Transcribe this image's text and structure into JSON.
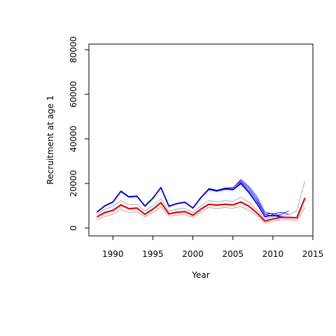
{
  "chart_data": {
    "type": "line",
    "xlabel": "Year",
    "ylabel": "Recruitment at age 1",
    "xlim": [
      1987,
      2015
    ],
    "ylim": [
      -3500,
      82500
    ],
    "x_ticks": [
      1990,
      1995,
      2000,
      2005,
      2010,
      2015
    ],
    "y_ticks": [
      0,
      20000,
      40000,
      60000,
      80000
    ],
    "grid": false,
    "colors": {
      "blue": "#0000ee",
      "red": "#ee0000",
      "grey": "#999999"
    },
    "series": [
      {
        "color": "blue",
        "width": 1.8,
        "x": [
          1988,
          1989,
          1990,
          1991,
          1992,
          1993,
          1994,
          1995,
          1996,
          1997,
          1998,
          1999,
          2000,
          2001,
          2002,
          2003,
          2004,
          2005,
          2006,
          2007,
          2008,
          2009,
          2010,
          2011,
          2012
        ],
        "y": [
          7200,
          10000,
          11700,
          16500,
          14000,
          14300,
          9900,
          13400,
          18200,
          9800,
          11000,
          11600,
          9000,
          13700,
          17400,
          16700,
          17600,
          17200,
          20000,
          16000,
          11000,
          5200,
          5800,
          5000,
          4800
        ]
      },
      {
        "color": "blue",
        "width": 0.8,
        "x": [
          1988,
          1989,
          1990,
          1991,
          1992,
          1993,
          1994,
          1995,
          1996,
          1997,
          1998,
          1999,
          2000,
          2001,
          2002,
          2003,
          2004,
          2005,
          2006,
          2007,
          2008,
          2009,
          2010,
          2011
        ],
        "y": [
          7200,
          10000,
          11800,
          16700,
          14200,
          14500,
          10000,
          13500,
          18300,
          9900,
          11100,
          11700,
          9100,
          13800,
          17800,
          17000,
          18000,
          18100,
          21200,
          17800,
          13000,
          6200,
          6600,
          5400
        ]
      },
      {
        "color": "blue",
        "width": 0.8,
        "x": [
          1988,
          1989,
          1990,
          1991,
          1992,
          1993,
          1994,
          1995,
          1996,
          1997,
          1998,
          1999,
          2000,
          2001,
          2002,
          2003,
          2004,
          2005,
          2006,
          2007,
          2008,
          2009,
          2010,
          2011,
          2012
        ],
        "y": [
          7100,
          9900,
          11600,
          16400,
          13900,
          14200,
          9800,
          13300,
          18100,
          9700,
          10900,
          11500,
          8900,
          13600,
          17300,
          16600,
          17800,
          17900,
          21800,
          18600,
          14100,
          7200,
          6300,
          7100,
          6200
        ]
      },
      {
        "color": "blue",
        "width": 0.8,
        "x": [
          1988,
          1989,
          1990,
          1991,
          1992,
          1993,
          1994,
          1995,
          1996,
          1997,
          1998,
          1999,
          2000,
          2001,
          2002,
          2003,
          2004,
          2005,
          2006,
          2007,
          2008,
          2009,
          2010,
          2011,
          2012
        ],
        "y": [
          7000,
          9800,
          11500,
          16300,
          13800,
          14100,
          9700,
          13200,
          18000,
          9600,
          10800,
          11400,
          8800,
          13500,
          17200,
          16500,
          17300,
          17300,
          20600,
          16900,
          12200,
          6300,
          5200,
          6100,
          7800
        ]
      },
      {
        "color": "grey",
        "width": 0.8,
        "x": [
          1988,
          1989,
          1990,
          1991,
          1992,
          1993,
          1994,
          1995,
          1996,
          1997,
          1998,
          1999,
          2000,
          2001,
          2002,
          2003,
          2004,
          2005,
          2006,
          2007,
          2008,
          2009,
          2010,
          2011,
          2012,
          2013,
          2014
        ],
        "y": [
          6200,
          8400,
          9800,
          12300,
          10500,
          10600,
          7600,
          10000,
          13000,
          7700,
          8500,
          8800,
          7000,
          10000,
          12300,
          11800,
          12300,
          12000,
          13800,
          11600,
          8200,
          4200,
          5200,
          5600,
          6000,
          7800,
          21200
        ]
      },
      {
        "color": "grey",
        "width": 0.8,
        "x": [
          1988,
          1989,
          1990,
          1991,
          1992,
          1993,
          1994,
          1995,
          1996,
          1997,
          1998,
          1999,
          2000,
          2001,
          2002,
          2003,
          2004,
          2005,
          2006,
          2007,
          2008,
          2009,
          2010,
          2011,
          2012,
          2013,
          2014
        ],
        "y": [
          3800,
          5300,
          6100,
          8500,
          7000,
          7300,
          5100,
          7000,
          9500,
          5400,
          5800,
          6100,
          4800,
          7100,
          9200,
          8800,
          9200,
          8900,
          9700,
          8000,
          5600,
          2300,
          3000,
          3700,
          3800,
          3500,
          9200
        ]
      },
      {
        "color": "red",
        "width": 2.2,
        "x": [
          1988,
          1989,
          1990,
          1991,
          1992,
          1993,
          1994,
          1995,
          1996,
          1997,
          1998,
          1999,
          2000,
          2001,
          2002,
          2003,
          2004,
          2005,
          2006,
          2007,
          2008,
          2009,
          2010,
          2011,
          2012,
          2013,
          2014
        ],
        "y": [
          5000,
          7000,
          7900,
          10400,
          8700,
          9000,
          6200,
          8500,
          11400,
          6400,
          7100,
          7400,
          5800,
          8500,
          10700,
          10300,
          10700,
          10400,
          11700,
          9800,
          6800,
          3200,
          4100,
          4800,
          4800,
          4600,
          13500
        ]
      }
    ]
  }
}
